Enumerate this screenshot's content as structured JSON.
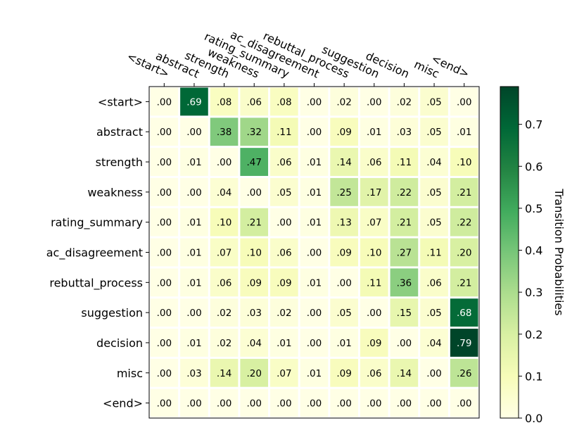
{
  "chart_data": {
    "type": "heatmap",
    "title": "",
    "xlabel": "",
    "ylabel": "",
    "x_labels": [
      "<start>",
      "abstract",
      "strength",
      "weakness",
      "rating_summary",
      "ac_disagreement",
      "rebuttal_process",
      "suggestion",
      "decision",
      "misc",
      "<end>"
    ],
    "y_labels": [
      "<start>",
      "abstract",
      "strength",
      "weakness",
      "rating_summary",
      "ac_disagreement",
      "rebuttal_process",
      "suggestion",
      "decision",
      "misc",
      "<end>"
    ],
    "cell_labels": [
      [
        ".00",
        ".69",
        ".08",
        ".06",
        ".08",
        ".00",
        ".02",
        ".00",
        ".02",
        ".05",
        ".00"
      ],
      [
        ".00",
        ".00",
        ".38",
        ".32",
        ".11",
        ".00",
        ".09",
        ".01",
        ".03",
        ".05",
        ".01"
      ],
      [
        ".00",
        ".01",
        ".00",
        ".47",
        ".06",
        ".01",
        ".14",
        ".06",
        ".11",
        ".04",
        ".10"
      ],
      [
        ".00",
        ".00",
        ".04",
        ".00",
        ".05",
        ".01",
        ".25",
        ".17",
        ".22",
        ".05",
        ".21"
      ],
      [
        ".00",
        ".01",
        ".10",
        ".21",
        ".00",
        ".01",
        ".13",
        ".07",
        ".21",
        ".05",
        ".22"
      ],
      [
        ".00",
        ".01",
        ".07",
        ".10",
        ".06",
        ".00",
        ".09",
        ".10",
        ".27",
        ".11",
        ".20"
      ],
      [
        ".00",
        ".01",
        ".06",
        ".09",
        ".09",
        ".01",
        ".00",
        ".11",
        ".36",
        ".06",
        ".21"
      ],
      [
        ".00",
        ".00",
        ".02",
        ".03",
        ".02",
        ".00",
        ".05",
        ".00",
        ".15",
        ".05",
        ".68"
      ],
      [
        ".00",
        ".01",
        ".02",
        ".04",
        ".01",
        ".00",
        ".01",
        ".09",
        ".00",
        ".04",
        ".79"
      ],
      [
        ".00",
        ".03",
        ".14",
        ".20",
        ".07",
        ".01",
        ".09",
        ".06",
        ".14",
        ".00",
        ".26"
      ],
      [
        ".00",
        ".00",
        ".00",
        ".00",
        ".00",
        ".00",
        ".00",
        ".00",
        ".00",
        ".00",
        ".00"
      ]
    ],
    "values": [
      [
        0.0,
        0.69,
        0.08,
        0.06,
        0.08,
        0.0,
        0.02,
        0.0,
        0.02,
        0.05,
        0.0
      ],
      [
        0.0,
        0.0,
        0.38,
        0.32,
        0.11,
        0.0,
        0.09,
        0.01,
        0.03,
        0.05,
        0.01
      ],
      [
        0.0,
        0.01,
        0.0,
        0.47,
        0.06,
        0.01,
        0.14,
        0.06,
        0.11,
        0.04,
        0.1
      ],
      [
        0.0,
        0.0,
        0.04,
        0.0,
        0.05,
        0.01,
        0.25,
        0.17,
        0.22,
        0.05,
        0.21
      ],
      [
        0.0,
        0.01,
        0.1,
        0.21,
        0.0,
        0.01,
        0.13,
        0.07,
        0.21,
        0.05,
        0.22
      ],
      [
        0.0,
        0.01,
        0.07,
        0.1,
        0.06,
        0.0,
        0.09,
        0.1,
        0.27,
        0.11,
        0.2
      ],
      [
        0.0,
        0.01,
        0.06,
        0.09,
        0.09,
        0.01,
        0.0,
        0.11,
        0.36,
        0.06,
        0.21
      ],
      [
        0.0,
        0.0,
        0.02,
        0.03,
        0.02,
        0.0,
        0.05,
        0.0,
        0.15,
        0.05,
        0.68
      ],
      [
        0.0,
        0.01,
        0.02,
        0.04,
        0.01,
        0.0,
        0.01,
        0.09,
        0.0,
        0.04,
        0.79
      ],
      [
        0.0,
        0.03,
        0.14,
        0.2,
        0.07,
        0.01,
        0.09,
        0.06,
        0.14,
        0.0,
        0.26
      ],
      [
        0.0,
        0.0,
        0.0,
        0.0,
        0.0,
        0.0,
        0.0,
        0.0,
        0.0,
        0.0,
        0.0
      ]
    ],
    "colorbar": {
      "label": "Transition Probabilities",
      "min": 0.0,
      "max": 0.79,
      "ticks": [
        0.0,
        0.1,
        0.2,
        0.3,
        0.4,
        0.5,
        0.6,
        0.7
      ],
      "tick_labels": [
        "0.0",
        "0.1",
        "0.2",
        "0.3",
        "0.4",
        "0.5",
        "0.6",
        "0.7"
      ]
    },
    "colormap": "YlGn",
    "colormap_stops": [
      "#ffffe5",
      "#f7fcb9",
      "#d9f0a3",
      "#addd8e",
      "#78c679",
      "#41ab5d",
      "#238443",
      "#006837",
      "#004529"
    ],
    "grid": false,
    "legend": "colorbar-right"
  }
}
